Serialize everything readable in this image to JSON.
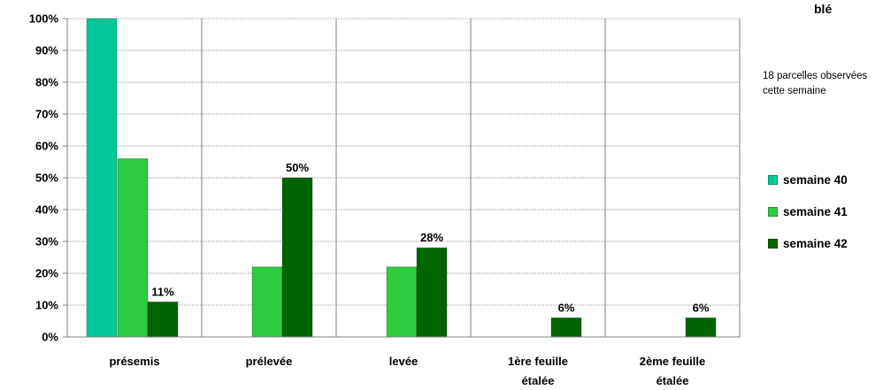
{
  "chart_data": {
    "type": "bar",
    "title": "blé",
    "note": "18 parcelles observées cette semaine",
    "categories": [
      "présemis",
      "prélevée",
      "levée",
      "1ère feuille étalée",
      "2ème feuille étalée"
    ],
    "category_lines": [
      [
        "présemis"
      ],
      [
        "prélevée"
      ],
      [
        "levée"
      ],
      [
        "1ère feuille",
        "étalée"
      ],
      [
        "2ème feuille",
        "étalée"
      ]
    ],
    "series": [
      {
        "name": "semaine 40",
        "color": "#00c896",
        "values": [
          100,
          0,
          0,
          0,
          0
        ]
      },
      {
        "name": "semaine 41",
        "color": "#2ecc40",
        "values": [
          56,
          22,
          22,
          0,
          0
        ]
      },
      {
        "name": "semaine 42",
        "color": "#006400",
        "values": [
          11,
          50,
          28,
          6,
          6
        ]
      }
    ],
    "data_labels": [
      {
        "series": 2,
        "category": 0,
        "text": "11%"
      },
      {
        "series": 2,
        "category": 1,
        "text": "50%"
      },
      {
        "series": 2,
        "category": 2,
        "text": "28%"
      },
      {
        "series": 2,
        "category": 3,
        "text": "6%"
      },
      {
        "series": 2,
        "category": 4,
        "text": "6%"
      }
    ],
    "ylim": [
      0,
      100
    ],
    "yticks": [
      "0%",
      "10%",
      "20%",
      "30%",
      "40%",
      "50%",
      "60%",
      "70%",
      "80%",
      "90%",
      "100%"
    ],
    "grid": true,
    "legend_position": "right"
  }
}
